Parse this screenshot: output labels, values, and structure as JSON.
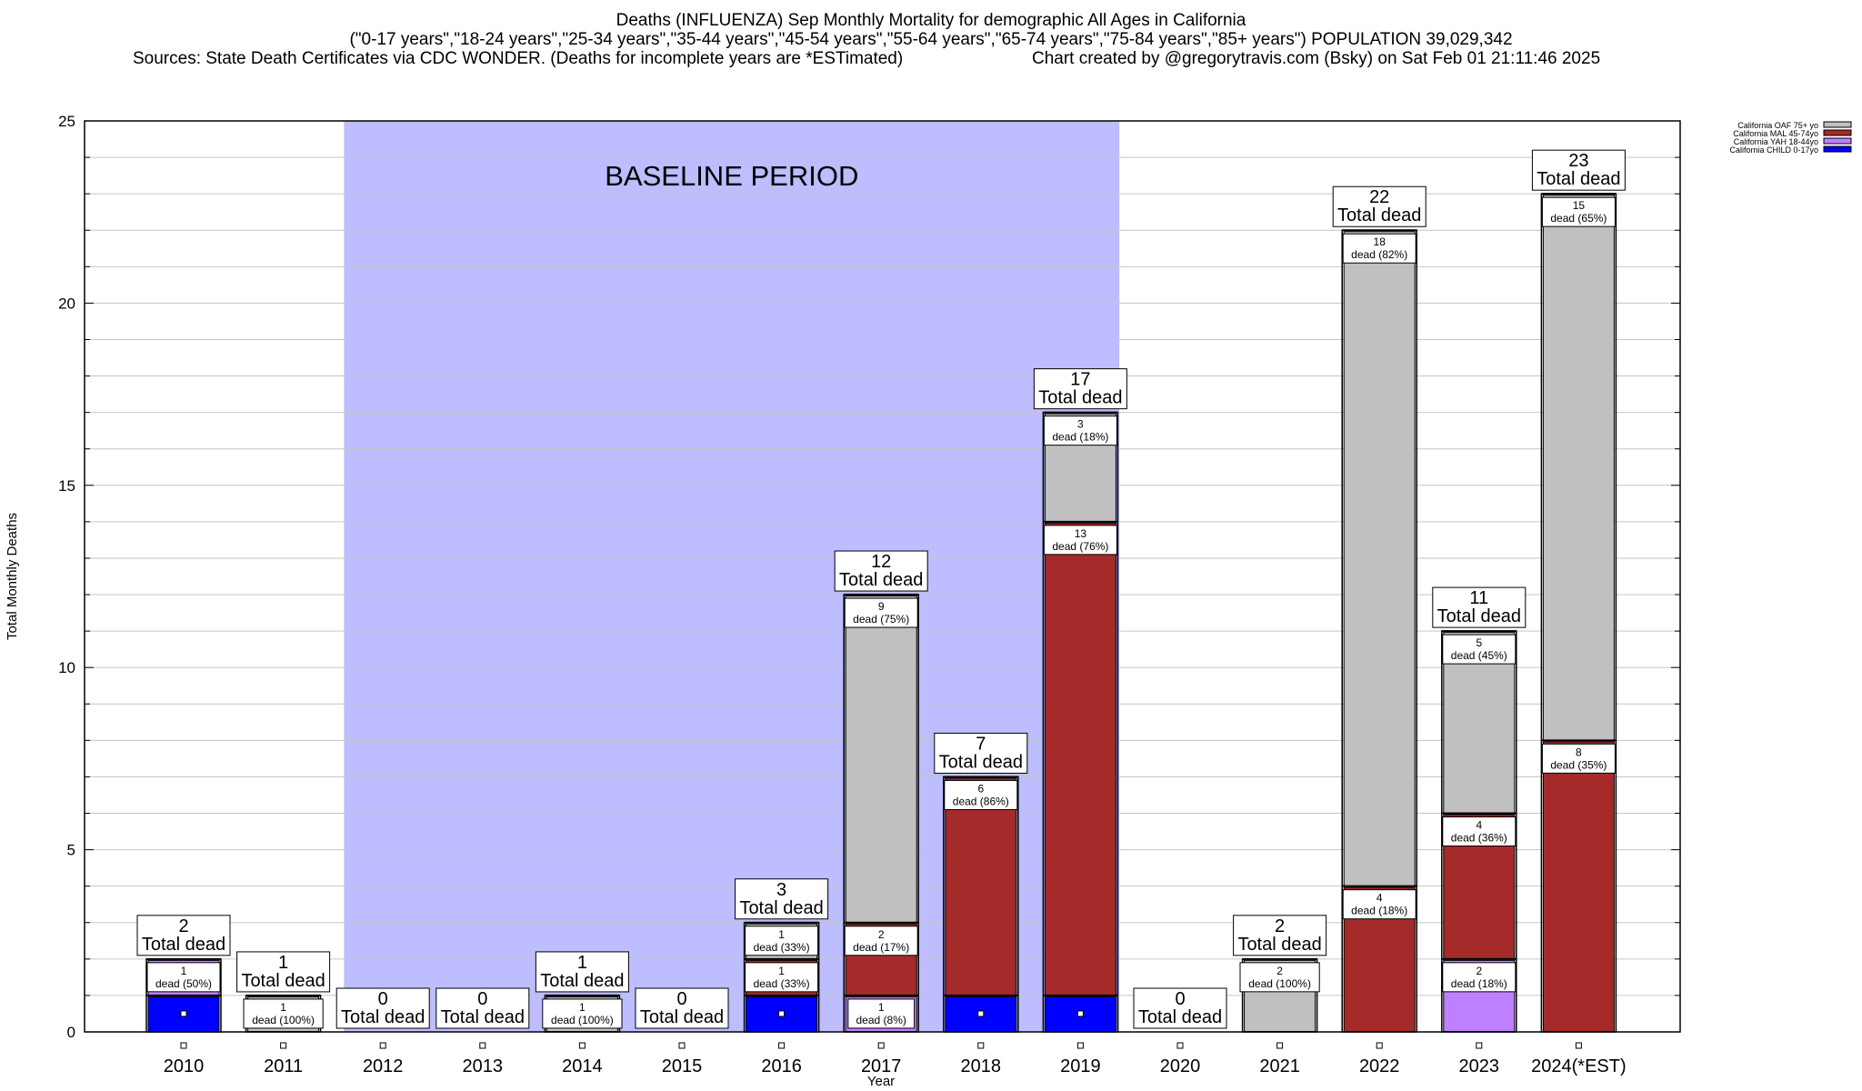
{
  "header": {
    "title_line1": "Deaths (INFLUENZA) Sep Monthly Mortality for demographic All Ages in California",
    "title_line2": "(\"0-17 years\",\"18-24 years\",\"25-34 years\",\"35-44 years\",\"45-54 years\",\"55-64 years\",\"65-74 years\",\"75-84 years\",\"85+ years\") POPULATION 39,029,342",
    "sources": "Sources: State Death Certificates via CDC WONDER. (Deaths for incomplete years are *ESTimated)",
    "credit": "Chart created by @gregorytravis.com (Bsky) on Sat Feb 01 21:11:46 2025"
  },
  "chart_data": {
    "type": "bar",
    "stacked": true,
    "title": "Deaths (INFLUENZA) Sep Monthly Mortality for demographic All Ages in California",
    "xlabel": "Year",
    "ylabel": "Total Monthly Deaths",
    "ylim": [
      0,
      25
    ],
    "yticks": [
      0,
      5,
      10,
      15,
      20,
      25
    ],
    "grid": true,
    "legend_position": "top-right",
    "annotation": "BASELINE PERIOD",
    "baseline_period": [
      "2012",
      "2019"
    ],
    "total_label": "Total dead",
    "categories": [
      "2010",
      "2011",
      "2012",
      "2013",
      "2014",
      "2015",
      "2016",
      "2017",
      "2018",
      "2019",
      "2020",
      "2021",
      "2022",
      "2023",
      "2024(*EST)"
    ],
    "totals": [
      2,
      1,
      0,
      0,
      1,
      0,
      3,
      12,
      7,
      17,
      0,
      2,
      22,
      11,
      23
    ],
    "series": [
      {
        "name": "California CHILD 0-17yo",
        "color": "#0000ff",
        "values": [
          1,
          0,
          0,
          0,
          0,
          0,
          1,
          0,
          1,
          1,
          0,
          0,
          0,
          0,
          0
        ],
        "labels": [
          "",
          "",
          "",
          "",
          "",
          "",
          "",
          "",
          "",
          "",
          "",
          "",
          "",
          "",
          ""
        ]
      },
      {
        "name": "California YAH 18-44yo",
        "color": "#bf80ff",
        "values": [
          1,
          0,
          0,
          0,
          0,
          0,
          0,
          1,
          0,
          0,
          0,
          0,
          0,
          2,
          0
        ],
        "labels": [
          "dead (50%)",
          "",
          "",
          "",
          "",
          "",
          "",
          "dead (8%)",
          "",
          "",
          "",
          "",
          "",
          "dead (18%)",
          ""
        ]
      },
      {
        "name": "California MAL 45-74yo",
        "color": "#a52a2a",
        "values": [
          0,
          0,
          0,
          0,
          0,
          0,
          1,
          2,
          6,
          13,
          0,
          0,
          4,
          4,
          8
        ],
        "labels": [
          "",
          "",
          "",
          "",
          "",
          "",
          "dead (33%)",
          "dead (17%)",
          "dead (86%)",
          "dead (76%)",
          "",
          "",
          "dead (18%)",
          "dead (36%)",
          "dead (35%)"
        ]
      },
      {
        "name": "California OAF 75+ yo",
        "color": "#c0c0c0",
        "values": [
          0,
          1,
          0,
          0,
          1,
          0,
          1,
          9,
          0,
          3,
          0,
          2,
          18,
          5,
          15
        ],
        "labels": [
          "",
          "dead (100%)",
          "",
          "",
          "dead (100%)",
          "",
          "dead (33%)",
          "dead (75%)",
          "",
          "dead (18%)",
          "",
          "dead (100%)",
          "dead (82%)",
          "dead (45%)",
          "dead (65%)"
        ]
      }
    ]
  }
}
